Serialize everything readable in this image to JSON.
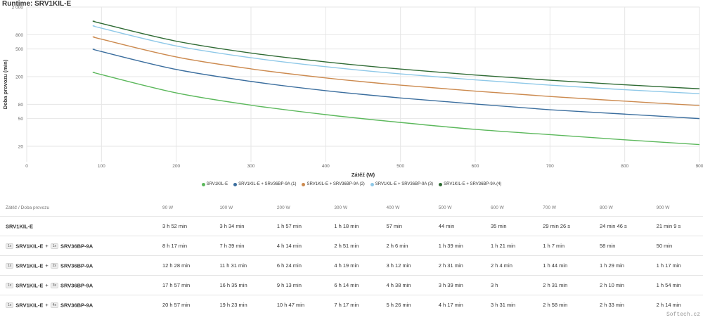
{
  "chart_data": {
    "type": "line",
    "title": "Runtime: SRV1KIL-E",
    "xlabel": "Zátěž (W)",
    "ylabel": "Doba provozu (min)",
    "xlim": [
      0,
      900
    ],
    "ylim": [
      12,
      2000
    ],
    "yscale": "log",
    "x_ticks": [
      0,
      100,
      200,
      300,
      400,
      500,
      600,
      700,
      800,
      900
    ],
    "y_ticks": [
      20,
      50,
      80,
      200,
      500,
      800,
      2000
    ],
    "y_tick_labels": [
      "20",
      "50",
      "80",
      "200",
      "500",
      "800",
      "2 000"
    ],
    "grid": true,
    "legend_position": "bottom",
    "x": [
      90,
      100,
      200,
      300,
      400,
      500,
      600,
      700,
      800,
      900
    ],
    "series": [
      {
        "name": "SRV1KIL-E",
        "color": "#5cb85c",
        "values": [
          232,
          214,
          117,
          78,
          57,
          44,
          35,
          29.4,
          24.8,
          21.2
        ]
      },
      {
        "name": "SRV1KIL-E + SRV36BP-9A (1)",
        "color": "#3b6e9e",
        "values": [
          497,
          459,
          254,
          171,
          126,
          99,
          81,
          67,
          58,
          50
        ]
      },
      {
        "name": "SRV1KIL-E + SRV36BP-9A (2)",
        "color": "#cc8a4f",
        "values": [
          748,
          691,
          384,
          259,
          192,
          151,
          124,
          104,
          89,
          77
        ]
      },
      {
        "name": "SRV1KIL-E + SRV36BP-9A (3)",
        "color": "#8ec8e8",
        "values": [
          1077,
          995,
          553,
          374,
          278,
          219,
          180,
          151,
          130,
          114
        ]
      },
      {
        "name": "SRV1KIL-E + SRV36BP-9A (4)",
        "color": "#2f6b34",
        "values": [
          1257,
          1163,
          647,
          437,
          326,
          257,
          211,
          178,
          153,
          134
        ]
      }
    ]
  },
  "table": {
    "header_label": "Zátěž / Doba provozu",
    "columns": [
      "90 W",
      "100 W",
      "200 W",
      "300 W",
      "400 W",
      "500 W",
      "600 W",
      "700 W",
      "800 W",
      "900 W"
    ],
    "rows": [
      {
        "qty": "",
        "model": "SRV1KIL-E",
        "plus": "",
        "pack_qty": "",
        "pack": "",
        "values": [
          "3 h 52 min",
          "3 h 34 min",
          "1 h 57 min",
          "1 h 18 min",
          "57 min",
          "44 min",
          "35 min",
          "29 min 26 s",
          "24 min 46 s",
          "21 min 9 s"
        ]
      },
      {
        "qty": "1x",
        "model": "SRV1KIL-E",
        "plus": "+",
        "pack_qty": "1x",
        "pack": "SRV36BP-9A",
        "values": [
          "8 h 17 min",
          "7 h 39 min",
          "4 h 14 min",
          "2 h 51 min",
          "2 h 6 min",
          "1 h 39 min",
          "1 h 21 min",
          "1 h 7 min",
          "58 min",
          "50 min"
        ]
      },
      {
        "qty": "1x",
        "model": "SRV1KIL-E",
        "plus": "+",
        "pack_qty": "2x",
        "pack": "SRV36BP-9A",
        "values": [
          "12 h 28 min",
          "11 h 31 min",
          "6 h 24 min",
          "4 h 19 min",
          "3 h 12 min",
          "2 h 31 min",
          "2 h 4 min",
          "1 h 44 min",
          "1 h 29 min",
          "1 h 17 min"
        ]
      },
      {
        "qty": "1x",
        "model": "SRV1KIL-E",
        "plus": "+",
        "pack_qty": "3x",
        "pack": "SRV36BP-9A",
        "values": [
          "17 h 57 min",
          "16 h 35 min",
          "9 h 13 min",
          "6 h 14 min",
          "4 h 38 min",
          "3 h 39 min",
          "3 h",
          "2 h 31 min",
          "2 h 10 min",
          "1 h 54 min"
        ]
      },
      {
        "qty": "1x",
        "model": "SRV1KIL-E",
        "plus": "+",
        "pack_qty": "4x",
        "pack": "SRV36BP-9A",
        "values": [
          "20 h 57 min",
          "19 h 23 min",
          "10 h 47 min",
          "7 h 17 min",
          "5 h 26 min",
          "4 h 17 min",
          "3 h 31 min",
          "2 h 58 min",
          "2 h 33 min",
          "2 h 14 min"
        ]
      }
    ]
  },
  "watermark": "Softech.cz"
}
